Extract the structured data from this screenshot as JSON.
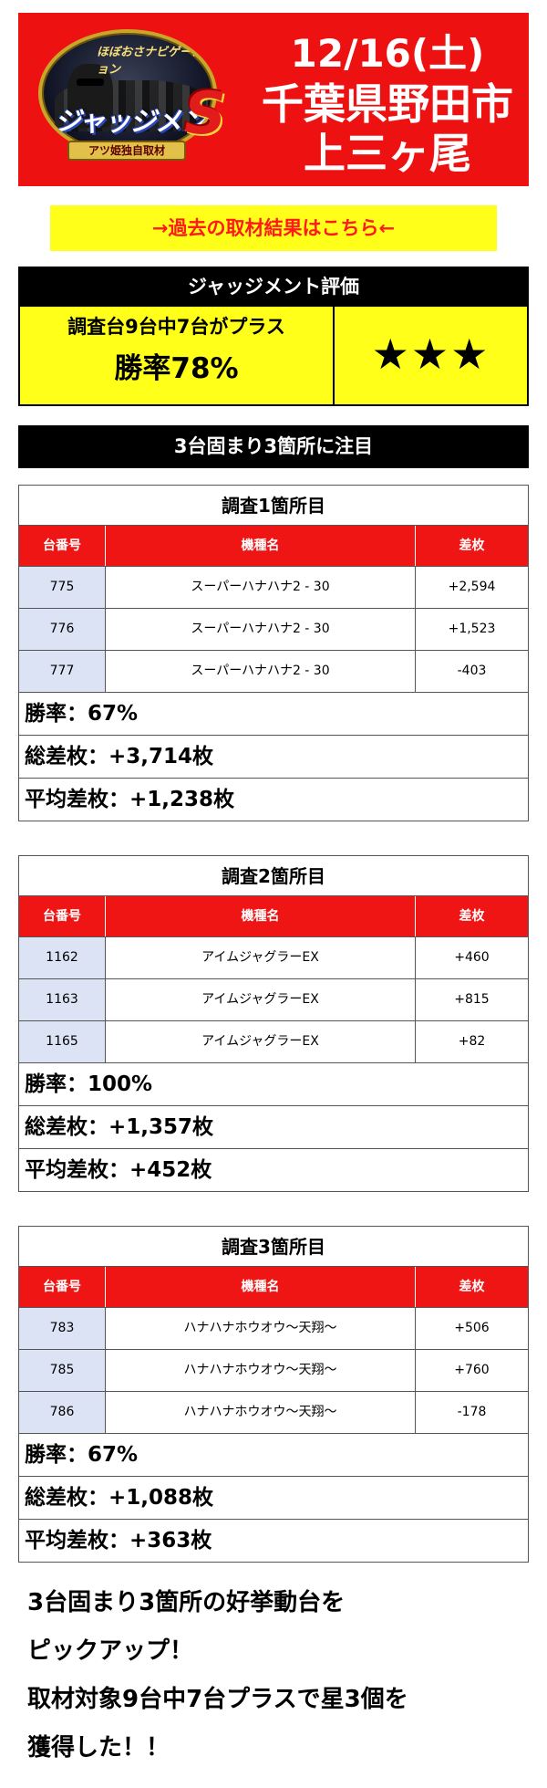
{
  "header": {
    "date": "12/16(土)",
    "location_line1": "千葉県野田市",
    "location_line2": "上三ヶ尾",
    "logo": {
      "top_text": "ほぼおさナビゲーション",
      "title": "ジャッジメント",
      "letter": "S",
      "ribbon": "アツ姫独自取材"
    },
    "background_color": "#ee1111"
  },
  "past_link": {
    "label": "→過去の取材結果はこちら←",
    "background_color": "#ffff1a",
    "text_color": "#ff1a1a"
  },
  "evaluation": {
    "heading": "ジャッジメント評価",
    "summary": "調査台9台中7台がプラス",
    "win_rate": "勝率78%",
    "stars": "★★★"
  },
  "focus_heading": "3台固まり3箇所に注目",
  "table_headers": {
    "machine_no": "台番号",
    "model": "機種名",
    "diff": "差枚"
  },
  "surveys": [
    {
      "title": "調査1箇所目",
      "rows": [
        {
          "no": "775",
          "model": "スーパーハナハナ2 - 30",
          "diff": "+2,594"
        },
        {
          "no": "776",
          "model": "スーパーハナハナ2 - 30",
          "diff": "+1,523"
        },
        {
          "no": "777",
          "model": "スーパーハナハナ2 - 30",
          "diff": "-403"
        }
      ],
      "win_rate": "勝率：67%",
      "total_diff": "総差枚：+3,714枚",
      "avg_diff": "平均差枚：+1,238枚"
    },
    {
      "title": "調査2箇所目",
      "rows": [
        {
          "no": "1162",
          "model": "アイムジャグラーEX",
          "diff": "+460"
        },
        {
          "no": "1163",
          "model": "アイムジャグラーEX",
          "diff": "+815"
        },
        {
          "no": "1165",
          "model": "アイムジャグラーEX",
          "diff": "+82"
        }
      ],
      "win_rate": "勝率：100%",
      "total_diff": "総差枚：+1,357枚",
      "avg_diff": "平均差枚：+452枚"
    },
    {
      "title": "調査3箇所目",
      "rows": [
        {
          "no": "783",
          "model": "ハナハナホウオウ～天翔～",
          "diff": "+506"
        },
        {
          "no": "785",
          "model": "ハナハナホウオウ～天翔～",
          "diff": "+760"
        },
        {
          "no": "786",
          "model": "ハナハナホウオウ～天翔～",
          "diff": "-178"
        }
      ],
      "win_rate": "勝率：67%",
      "total_diff": "総差枚：+1,088枚",
      "avg_diff": "平均差枚：+363枚"
    }
  ],
  "summary_lines": [
    "3台固まり3箇所の好挙動台を",
    "ピックアップ！",
    "取材対象9台中7台プラスで星3個を",
    "獲得した！！"
  ],
  "colors": {
    "table_header": "#f01515",
    "machine_cell": "#dbe3f4",
    "eval_body": "#ffff1a"
  }
}
